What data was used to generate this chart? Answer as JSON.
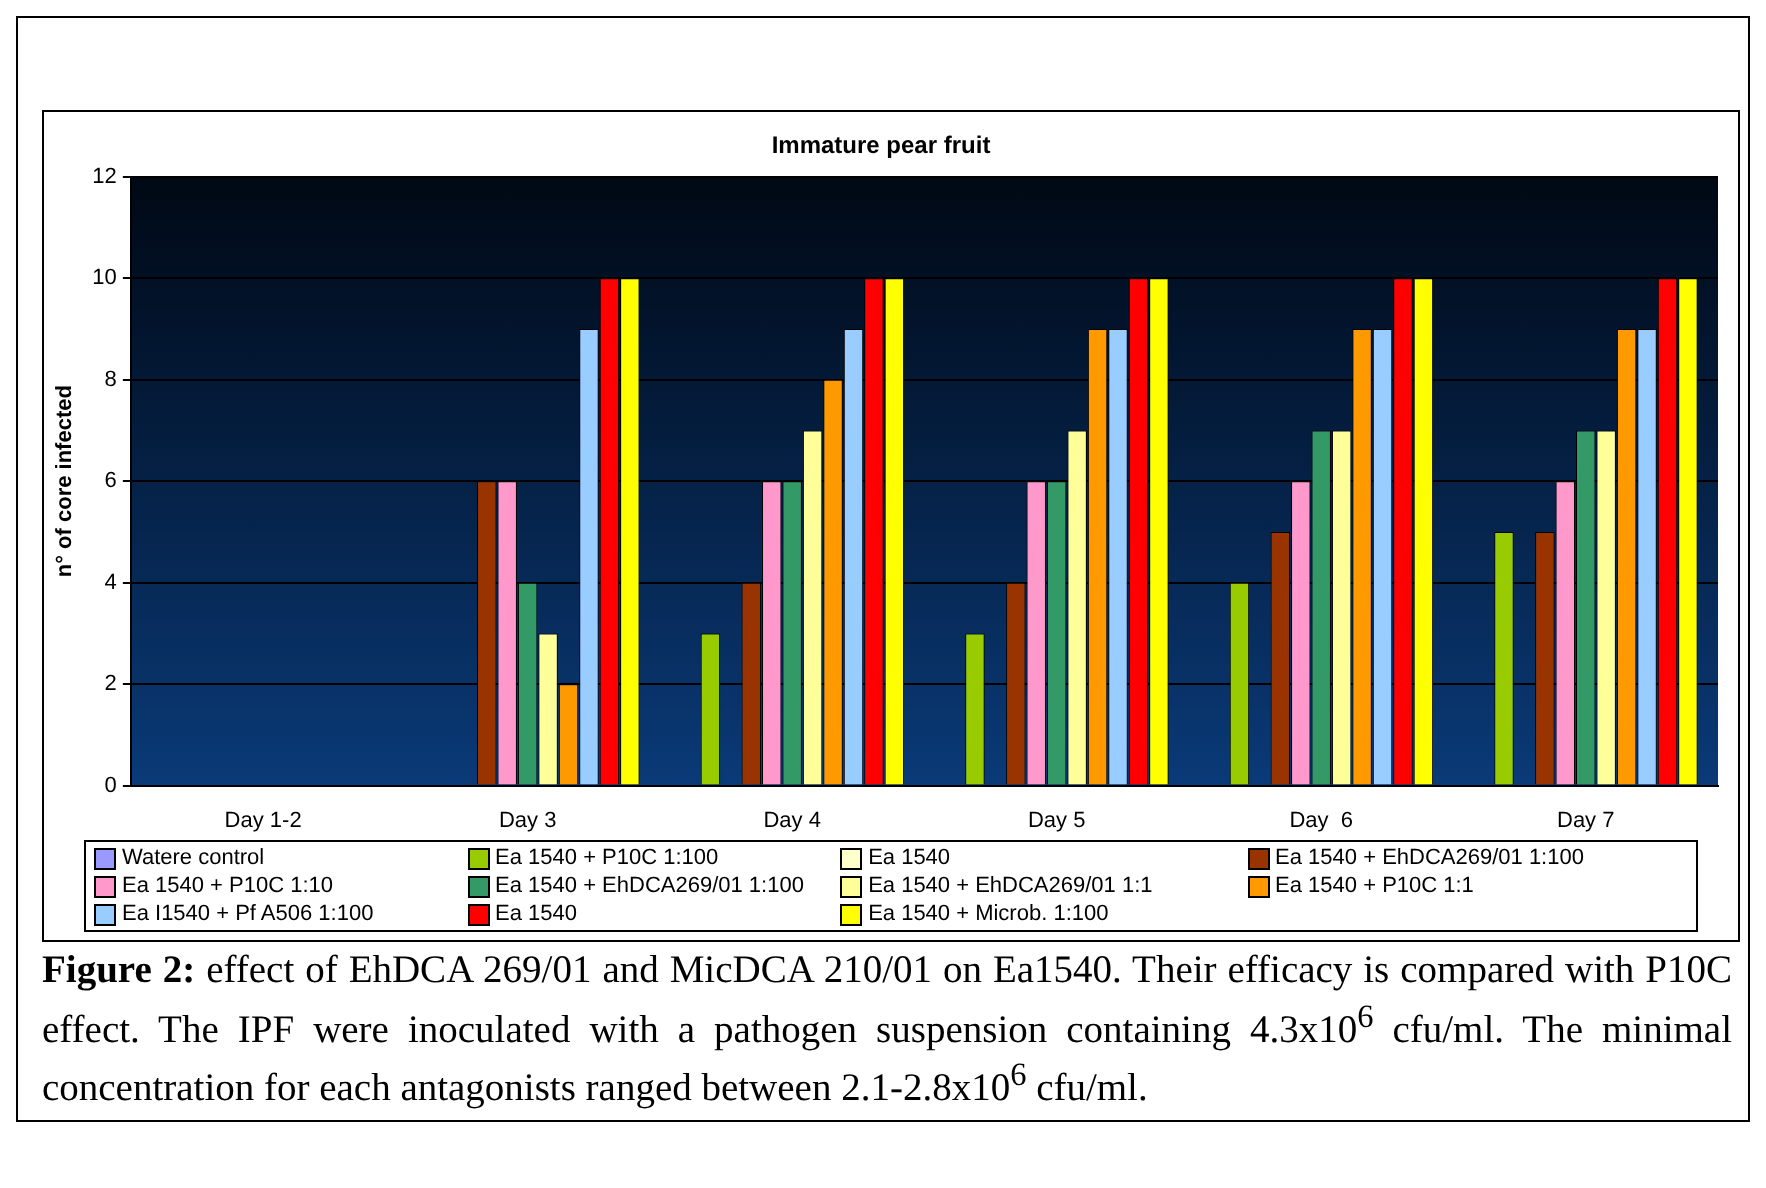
{
  "chart_data": {
    "type": "bar",
    "title": "Immature pear fruit",
    "ylabel": "n° of core infected",
    "categories": [
      "Day 1-2",
      "Day 3",
      "Day 4",
      "Day 5",
      "Day  6",
      "Day 7"
    ],
    "series": [
      {
        "name": "Watere control",
        "color": "#9999ff",
        "values": [
          0,
          0,
          0,
          0,
          0,
          0
        ]
      },
      {
        "name": "Ea 1540 + P10C 1:100",
        "color": "#99cc00",
        "values": [
          0,
          0,
          3,
          3,
          4,
          5
        ]
      },
      {
        "name": "Ea 1540",
        "color": "#ffffcc",
        "values": [
          0,
          0,
          0,
          0,
          0,
          0
        ]
      },
      {
        "name": "Ea 1540 + EhDCA269/01 1:100",
        "color": "#993300",
        "values": [
          0,
          6,
          4,
          4,
          5,
          5
        ]
      },
      {
        "name": "Ea 1540 + P10C 1:10",
        "color": "#ff99cc",
        "values": [
          0,
          6,
          6,
          6,
          6,
          6
        ]
      },
      {
        "name": "Ea 1540 + EhDCA269/01 1:100",
        "color": "#339966",
        "values": [
          0,
          4,
          6,
          6,
          7,
          7
        ]
      },
      {
        "name": "Ea 1540 + EhDCA269/01 1:1",
        "color": "#ffff99",
        "values": [
          0,
          3,
          7,
          7,
          7,
          7
        ]
      },
      {
        "name": "Ea 1540 + P10C 1:1",
        "color": "#ff9900",
        "values": [
          0,
          2,
          8,
          9,
          9,
          9
        ]
      },
      {
        "name": "Ea I1540 + Pf A506 1:100",
        "color": "#99ccff",
        "values": [
          0,
          9,
          9,
          9,
          9,
          9
        ]
      },
      {
        "name": "Ea 1540",
        "color": "#ff0000",
        "values": [
          0,
          10,
          10,
          10,
          10,
          10
        ]
      },
      {
        "name": "Ea 1540 + Microb. 1:100",
        "color": "#ffff00",
        "values": [
          0,
          10,
          10,
          10,
          10,
          10
        ]
      }
    ],
    "ylim": [
      0,
      12
    ],
    "yticks": [
      0,
      2,
      4,
      6,
      8,
      10,
      12
    ],
    "grid": "y",
    "legend": "bottom",
    "annotations": [
      "Figure 2:",
      "effect of EhDCA 269/01 and MicDCA 210/01 on Ea1540. Their efficacy is compared with P10C effect. The IPF were inoculated with a pathogen suspension containing 4.3x10$^{6}$ cfu/ml. The minimal concentration for each antagonists ranged between 2.1-2.8x10$^{6}$ cfu/ml."
    ]
  }
}
